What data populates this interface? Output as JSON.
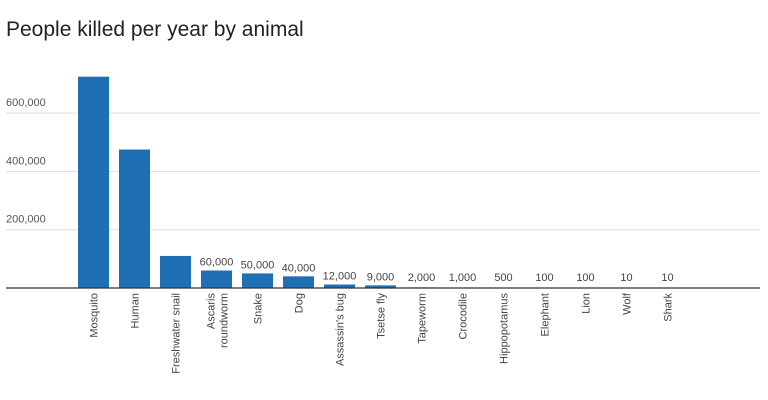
{
  "chart_data": {
    "type": "bar",
    "title": "People killed per year by animal",
    "xlabel": "",
    "ylabel": "",
    "ylim": [
      0,
      800000
    ],
    "yticks": [
      200000,
      400000,
      600000
    ],
    "ytick_labels": [
      "200,000",
      "400,000",
      "600,000"
    ],
    "grid": true,
    "legend": "none",
    "bar_color": "#1f6fb5",
    "categories": [
      "Mosquito",
      "Human",
      "Freshwater snail",
      "Ascaris roundworm",
      "Snake",
      "Dog",
      "Assassin's bug",
      "Tsetse fly",
      "Tapeworm",
      "Crocodile",
      "Hippopotamus",
      "Elephant",
      "Lion",
      "Wolf",
      "Shark"
    ],
    "values": [
      725000,
      475000,
      110000,
      60000,
      50000,
      40000,
      12000,
      9000,
      2000,
      1000,
      500,
      100,
      100,
      10,
      10
    ],
    "data_labels": [
      "",
      "",
      "",
      "60,000",
      "50,000",
      "40,000",
      "12,000",
      "9,000",
      "2,000",
      "1,000",
      "500",
      "100",
      "100",
      "10",
      "10"
    ]
  }
}
